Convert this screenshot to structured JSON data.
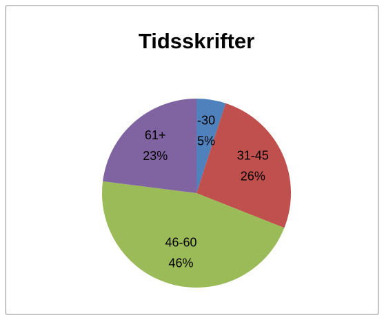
{
  "chart_data": {
    "type": "pie",
    "title": "Tidsskrifter",
    "categories": [
      "-30",
      "31-45",
      "46-60",
      "61+"
    ],
    "values": [
      5,
      26,
      46,
      23
    ],
    "value_labels": [
      "5%",
      "26%",
      "46%",
      "23%"
    ],
    "colors": [
      "#4f81bd",
      "#c0504d",
      "#9bbb59",
      "#8064a2"
    ]
  }
}
